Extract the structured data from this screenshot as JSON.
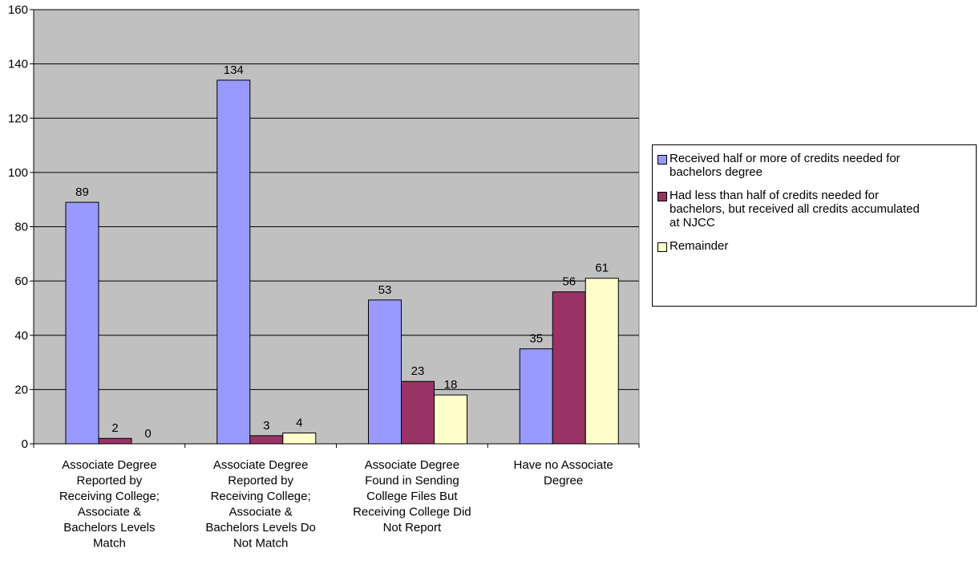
{
  "chart_data": {
    "type": "bar",
    "title": "",
    "xlabel": "",
    "ylabel": "",
    "ylim": [
      0,
      160
    ],
    "yticks": [
      0,
      20,
      40,
      60,
      80,
      100,
      120,
      140,
      160
    ],
    "grid": true,
    "legend_position": "right",
    "plot_background": "#c0c0c0",
    "categories": [
      "Associate Degree Reported by Receiving College; Associate & Bachelors Levels Match",
      "Associate Degree Reported by Receiving College; Associate & Bachelors Levels Do Not Match",
      "Associate Degree Found in Sending College Files But Receiving College Did Not Report",
      "Have no Associate Degree"
    ],
    "category_label_lines": [
      [
        "Associate Degree",
        "Reported by",
        "Receiving College;",
        "Associate &",
        "Bachelors Levels",
        "Match"
      ],
      [
        "Associate Degree",
        "Reported by",
        "Receiving College;",
        "Associate &",
        "Bachelors Levels Do",
        "Not Match"
      ],
      [
        "Associate Degree",
        "Found in Sending",
        "College Files But",
        "Receiving College Did",
        "Not Report"
      ],
      [
        "Have no Associate",
        "Degree"
      ]
    ],
    "series": [
      {
        "name": "Received half or more of credits needed for bachelors degree",
        "legend_lines": [
          "Received half or more of credits needed for",
          "bachelors degree"
        ],
        "color": "#9999ff",
        "values": [
          89,
          134,
          53,
          35
        ]
      },
      {
        "name": "Had less than half of credits needed for bachelors, but received all credits accumulated at NJCC",
        "legend_lines": [
          "Had less than half of credits needed for",
          "bachelors, but received all credits accumulated",
          "at NJCC"
        ],
        "color": "#993366",
        "values": [
          2,
          3,
          23,
          56
        ]
      },
      {
        "name": "Remainder",
        "legend_lines": [
          "Remainder"
        ],
        "color": "#ffffcc",
        "values": [
          0,
          4,
          18,
          61
        ]
      }
    ]
  }
}
